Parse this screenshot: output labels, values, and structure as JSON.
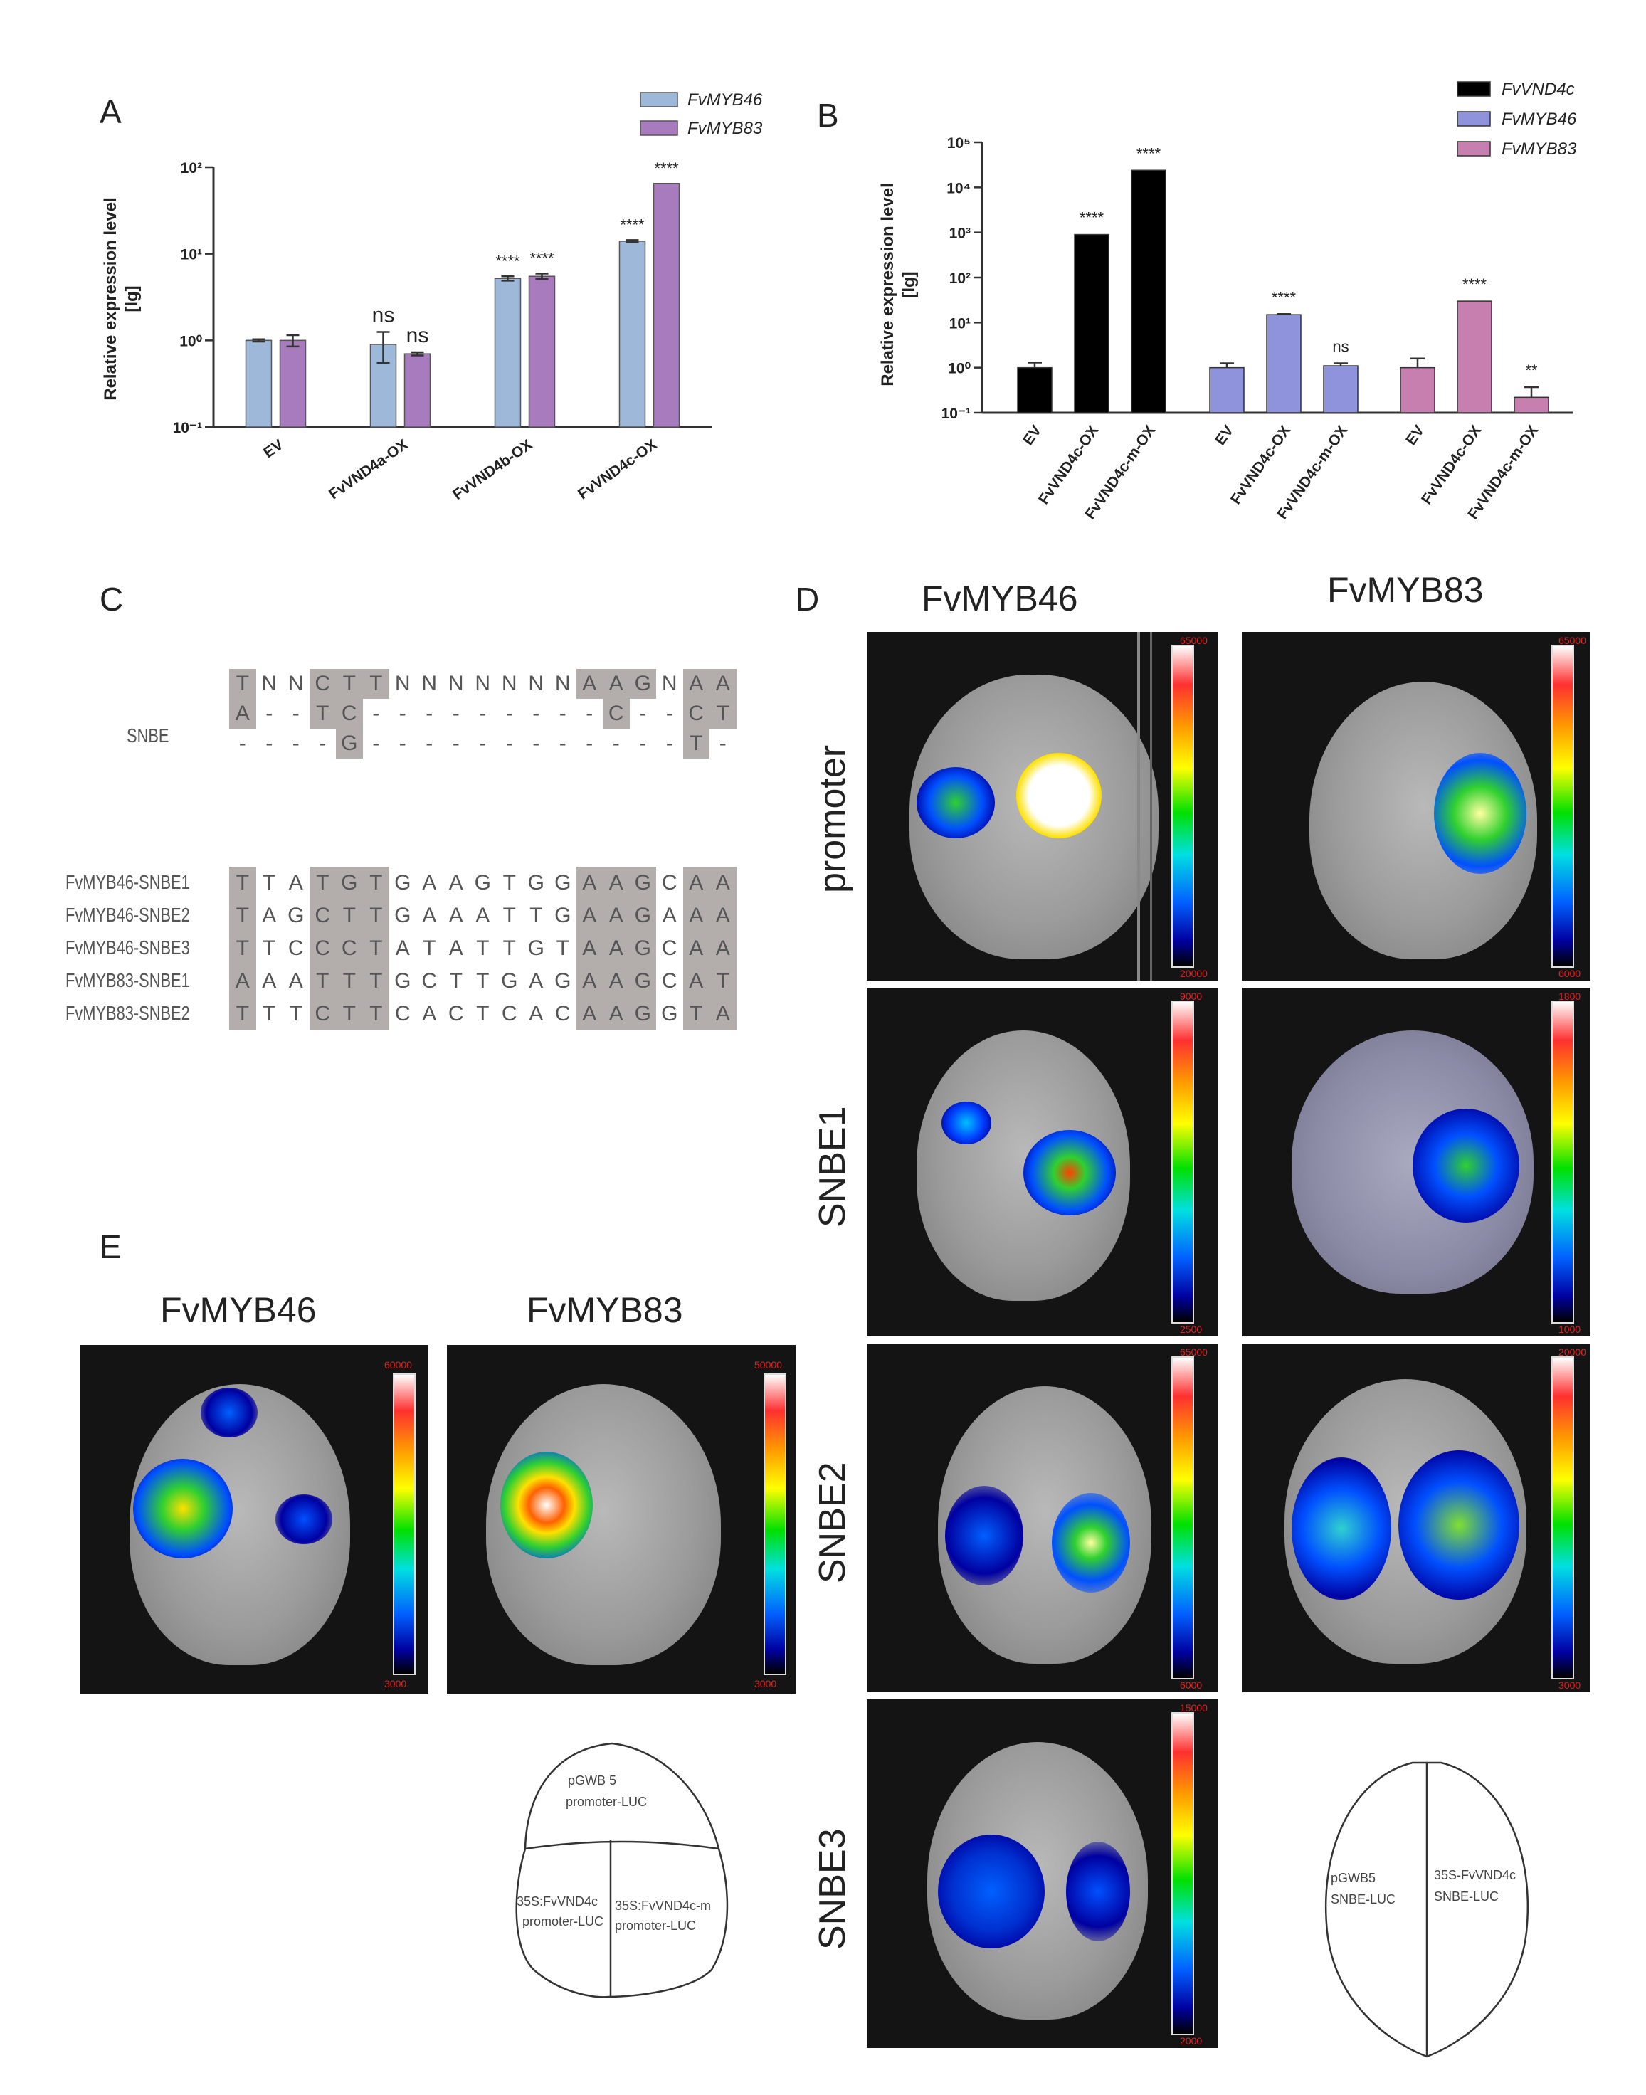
{
  "panel_letters": {
    "a": "A",
    "b": "B",
    "c": "C",
    "d": "D",
    "e": "E"
  },
  "chart_data": [
    {
      "panel": "A",
      "type": "bar",
      "yscale": "log",
      "ylabel": "Relative expression level",
      "ylabel2": "[lg]",
      "yticks": [
        "10⁻¹",
        "10⁰",
        "10¹",
        "10²"
      ],
      "ylim": [
        0.1,
        100
      ],
      "categories": [
        "EV",
        "FvVND4a-OX",
        "FvVND4b-OX",
        "FvVND4c-OX"
      ],
      "series": [
        {
          "name": "FvMYB46",
          "color": "#9db8d9",
          "values": [
            1.0,
            0.9,
            5.2,
            14
          ],
          "errors": [
            0.03,
            0.35,
            0.3,
            0.4
          ],
          "sig": [
            "",
            "ns",
            "****",
            "****"
          ]
        },
        {
          "name": "FvMYB83",
          "color": "#a77bbd",
          "values": [
            1.0,
            0.7,
            5.5,
            65
          ],
          "errors": [
            0.15,
            0.03,
            0.4,
            0
          ],
          "sig": [
            "",
            "ns",
            "****",
            "****"
          ]
        }
      ],
      "legend": "top-right"
    },
    {
      "panel": "B",
      "type": "bar",
      "yscale": "log",
      "ylabel": "Relative expression level",
      "ylabel2": "[lg]",
      "yticks": [
        "10⁻¹",
        "10⁰",
        "10¹",
        "10²",
        "10³",
        "10⁴",
        "10⁵"
      ],
      "ylim": [
        0.1,
        100000
      ],
      "groups": [
        {
          "name": "FvVND4c",
          "color": "#000000",
          "categories": [
            "EV",
            "FvVND4c-OX",
            "FvVND4c-m-OX"
          ],
          "values": [
            1.0,
            900,
            24000
          ],
          "errors": [
            0.3,
            0,
            0
          ],
          "sig": [
            "",
            "****",
            "****"
          ]
        },
        {
          "name": "FvMYB46",
          "color": "#8f93dc",
          "categories": [
            "EV",
            "FvVND4c-OX",
            "FvVND4c-m-OX"
          ],
          "values": [
            1.0,
            15,
            1.1
          ],
          "errors": [
            0.25,
            0.5,
            0.15
          ],
          "sig": [
            "",
            "****",
            "ns"
          ]
        },
        {
          "name": "FvMYB83",
          "color": "#c77fb0",
          "categories": [
            "EV",
            "FvVND4c-OX",
            "FvVND4c-m-OX"
          ],
          "values": [
            1.0,
            30,
            0.22
          ],
          "errors": [
            0.6,
            0,
            0.15
          ],
          "sig": [
            "",
            "****",
            "**"
          ]
        }
      ],
      "legend": "top-right"
    }
  ],
  "panel_c": {
    "snbe_label": "SNBE",
    "snbe_rows": [
      [
        "T",
        "N",
        "N",
        "C",
        "T",
        "T",
        "N",
        "N",
        "N",
        "N",
        "N",
        "N",
        "N",
        "A",
        "A",
        "G",
        "N",
        "A",
        "A"
      ],
      [
        "A",
        "-",
        "-",
        "T",
        "C",
        "-",
        "-",
        "-",
        "-",
        "-",
        "-",
        "-",
        "-",
        "-",
        "C",
        "-",
        "-",
        "C",
        "T"
      ],
      [
        "-",
        "-",
        "-",
        "-",
        "G",
        "-",
        "-",
        "-",
        "-",
        "-",
        "-",
        "-",
        "-",
        "-",
        "-",
        "-",
        "-",
        "T",
        "-"
      ]
    ],
    "seq_rows": [
      {
        "name": "FvMYB46-SNBE1",
        "seq": [
          "T",
          "T",
          "A",
          "T",
          "G",
          "T",
          "G",
          "A",
          "A",
          "G",
          "T",
          "G",
          "G",
          "A",
          "A",
          "G",
          "C",
          "A",
          "A"
        ]
      },
      {
        "name": "FvMYB46-SNBE2",
        "seq": [
          "T",
          "A",
          "G",
          "C",
          "T",
          "T",
          "G",
          "A",
          "A",
          "A",
          "T",
          "T",
          "G",
          "A",
          "A",
          "G",
          "A",
          "A",
          "A"
        ]
      },
      {
        "name": "FvMYB46-SNBE3",
        "seq": [
          "T",
          "T",
          "C",
          "C",
          "C",
          "T",
          "A",
          "T",
          "A",
          "T",
          "T",
          "G",
          "T",
          "A",
          "A",
          "G",
          "C",
          "A",
          "A"
        ]
      },
      {
        "name": "FvMYB83-SNBE1",
        "seq": [
          "A",
          "A",
          "A",
          "T",
          "T",
          "T",
          "G",
          "C",
          "T",
          "T",
          "G",
          "A",
          "G",
          "A",
          "A",
          "G",
          "C",
          "A",
          "T"
        ]
      },
      {
        "name": "FvMYB83-SNBE2",
        "seq": [
          "T",
          "T",
          "T",
          "C",
          "T",
          "T",
          "C",
          "A",
          "C",
          "T",
          "C",
          "A",
          "C",
          "A",
          "A",
          "G",
          "G",
          "T",
          "A"
        ]
      }
    ]
  },
  "panel_d": {
    "col_titles": [
      "FvMYB46",
      "FvMYB83"
    ],
    "row_titles": [
      "promoter",
      "SNBE1",
      "SNBE2",
      "SNBE3"
    ],
    "scales": {
      "promoter_46": {
        "max": "65000",
        "min": "20000"
      },
      "promoter_83": {
        "max": "65000",
        "min": "6000"
      },
      "snbe1_46": {
        "max": "9000",
        "min": "2500"
      },
      "snbe1_83": {
        "max": "1800",
        "min": "1000"
      },
      "snbe2_46": {
        "max": "65000",
        "min": "6000"
      },
      "snbe2_83": {
        "max": "20000",
        "min": "3000"
      },
      "snbe3_46": {
        "max": "15000",
        "min": "2000"
      }
    },
    "diagram": {
      "left": "pGWB5",
      "left2": "SNBE-LUC",
      "right": "35S-FvVND4c",
      "right2": "SNBE-LUC"
    }
  },
  "panel_e": {
    "col_titles": [
      "FvMYB46",
      "FvMYB83"
    ],
    "scales": {
      "e46": {
        "max": "60000",
        "min": "3000"
      },
      "e83": {
        "max": "50000",
        "min": "3000"
      }
    },
    "diagram": {
      "top": "pGWB 5",
      "top2": "promoter-LUC",
      "left": "35S:FvVND4c",
      "left2": "promoter-LUC",
      "right": "35S:FvVND4c-m",
      "right2": "promoter-LUC"
    }
  }
}
